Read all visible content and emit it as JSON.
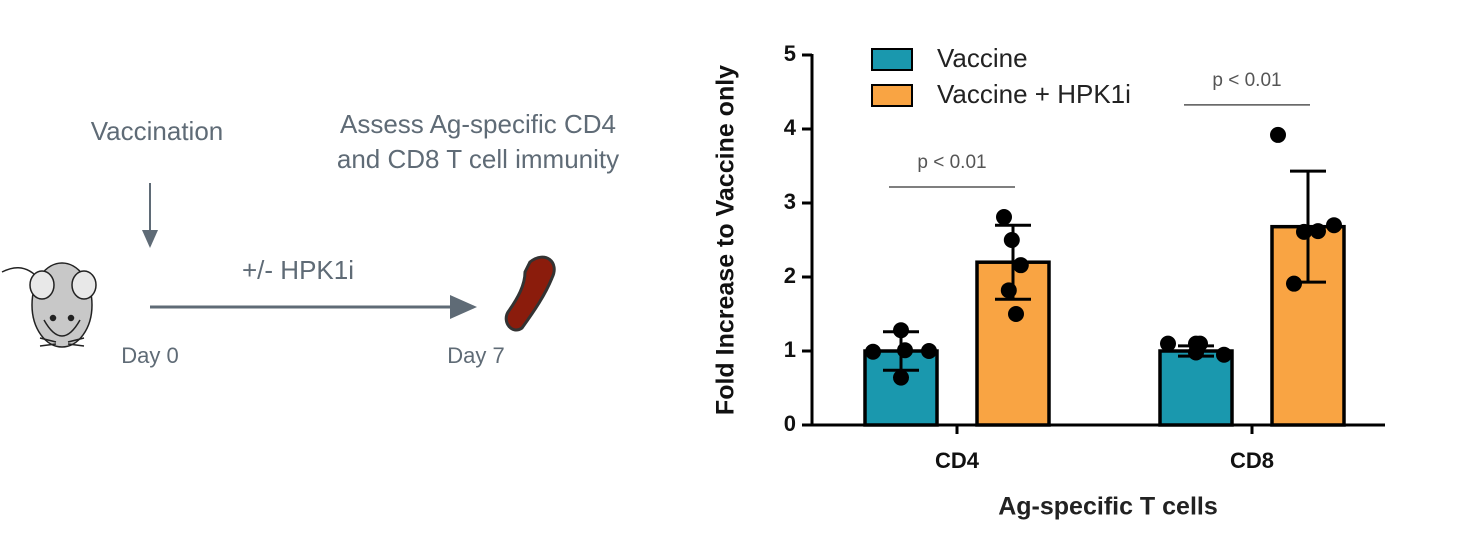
{
  "diagram": {
    "vaccination": "Vaccination",
    "assess": [
      "Assess Ag-specific CD4",
      "and CD8 T cell immunity"
    ],
    "treatment": "+/- HPK1i",
    "day_start": "Day 0",
    "day_end": "Day 7"
  },
  "chart_data": {
    "type": "bar",
    "y_label": "Fold Increase to Vaccine only",
    "x_label": "Ag-specific T cells",
    "categories": [
      "CD4",
      "CD8"
    ],
    "series": [
      {
        "name": "Vaccine",
        "color": "#1a98ae",
        "values": [
          1.0,
          1.0
        ],
        "errors": [
          0.26,
          0.07
        ],
        "points": [
          [
            1.28,
            0.99,
            1.01,
            1.0,
            0.64
          ],
          [
            1.1,
            1.1,
            1.1,
            0.95,
            0.98
          ]
        ]
      },
      {
        "name": "Vaccine + HPK1i",
        "color": "#f9a443",
        "values": [
          2.2,
          2.68
        ],
        "errors": [
          0.5,
          0.75
        ],
        "points": [
          [
            2.81,
            2.5,
            2.16,
            1.82,
            1.5
          ],
          [
            3.92,
            2.61,
            2.7,
            1.91,
            2.62
          ]
        ]
      }
    ],
    "annotations": [
      "p < 0.01",
      "p < 0.01"
    ],
    "ylim": [
      0,
      5
    ],
    "yticks": [
      0,
      1,
      2,
      3,
      4,
      5
    ],
    "legend": "top-left",
    "grid": false
  }
}
